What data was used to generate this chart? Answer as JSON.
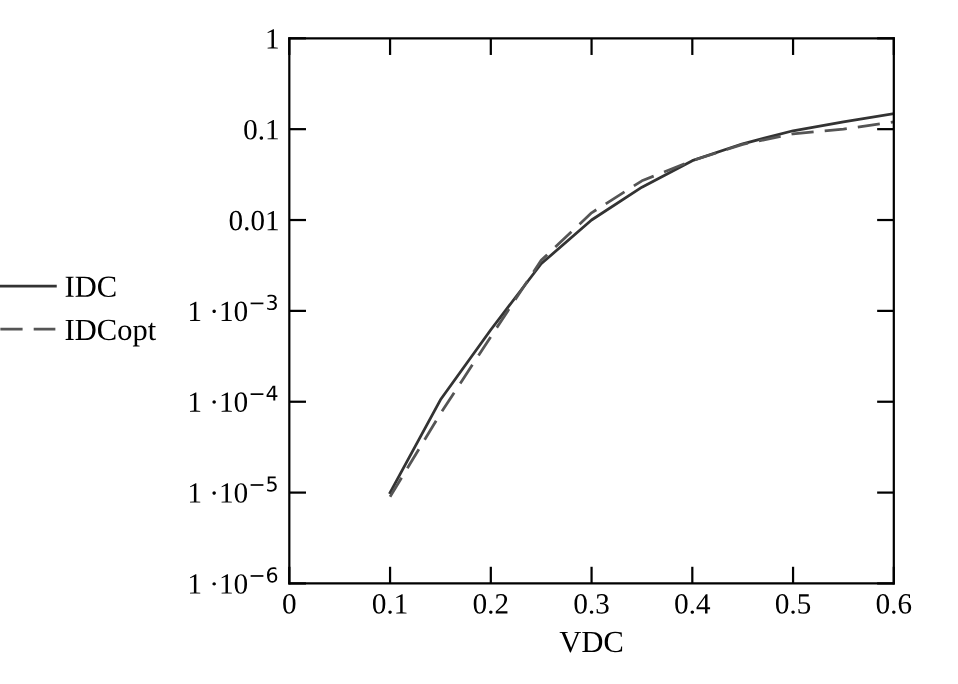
{
  "chart_data": {
    "type": "line",
    "xlabel": "VDC",
    "x": [
      0.1,
      0.15,
      0.2,
      0.25,
      0.3,
      0.35,
      0.4,
      0.45,
      0.5,
      0.55,
      0.6
    ],
    "series": [
      {
        "name": "IDC",
        "color": "#333333",
        "line_style": "solid",
        "values": [
          1e-05,
          0.000105,
          0.00062,
          0.0033,
          0.01,
          0.023,
          0.045,
          0.069,
          0.096,
          0.12,
          0.148
        ]
      },
      {
        "name": "IDCopt",
        "color": "#555555",
        "line_style": "dashed",
        "values": [
          9e-06,
          7.4e-05,
          0.00052,
          0.0036,
          0.012,
          0.027,
          0.045,
          0.068,
          0.089,
          0.1,
          0.12
        ]
      }
    ],
    "log": "y",
    "xlim": [
      0,
      0.6
    ],
    "ylim": [
      1e-06,
      1
    ],
    "xticks": [
      0,
      0.1,
      0.2,
      0.3,
      0.4,
      0.5,
      0.6
    ],
    "yticks": [
      {
        "value": 1e-06,
        "label": "1 ·10$^{−6}$"
      },
      {
        "value": 1e-05,
        "label": "1 ·10$^{−5}$"
      },
      {
        "value": 0.0001,
        "label": "1 ·10$^{−4}$"
      },
      {
        "value": 0.001,
        "label": "1 ·10$^{−3}$"
      },
      0.01,
      0.1,
      1
    ],
    "grid": false,
    "legend": "left",
    "marker": "none"
  }
}
